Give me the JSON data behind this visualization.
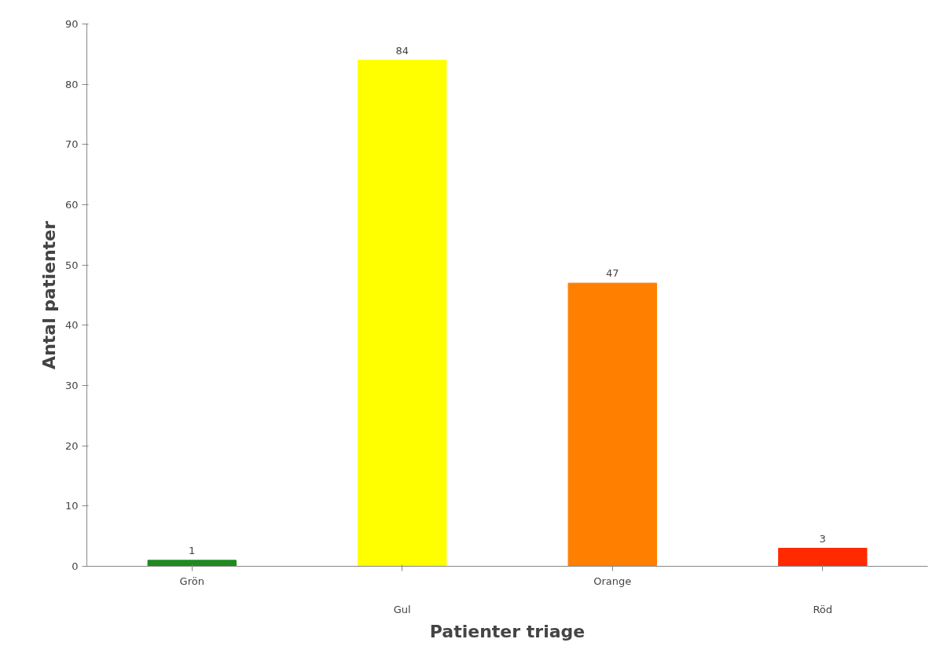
{
  "chart_data": {
    "type": "bar",
    "xlabel": "Patienter triage",
    "ylabel": "Antal patienter",
    "categories": [
      "Grön",
      "Gul",
      "Orange",
      "Röd"
    ],
    "values": [
      1,
      84,
      47,
      3
    ],
    "colors": [
      "#1f8a1f",
      "#ffff00",
      "#ff7f00",
      "#ff2a00"
    ],
    "ylim": [
      0,
      90
    ],
    "yticks": [
      0,
      10,
      20,
      30,
      40,
      50,
      60,
      70,
      80,
      90
    ],
    "data_labels": true,
    "grid": false
  }
}
